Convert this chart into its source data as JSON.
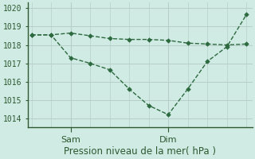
{
  "background_color": "#d0eae4",
  "plot_bg_color": "#d0eae4",
  "grid_color": "#b8cfc9",
  "line_color": "#2d6a3f",
  "line1_x": [
    0,
    1,
    2,
    3,
    4,
    5,
    6,
    7,
    8,
    9,
    10,
    11
  ],
  "line1_y": [
    1018.55,
    1018.55,
    1018.65,
    1018.5,
    1018.35,
    1018.3,
    1018.3,
    1018.25,
    1018.1,
    1018.05,
    1018.0,
    1018.05
  ],
  "line2_x": [
    0,
    1,
    2,
    3,
    4,
    5,
    6,
    7,
    8,
    9,
    10,
    11
  ],
  "line2_y": [
    1018.55,
    1018.55,
    1017.3,
    1017.0,
    1016.65,
    1015.6,
    1014.7,
    1014.2,
    1015.6,
    1017.1,
    1017.9,
    1019.65
  ],
  "sam_x": 2.0,
  "dim_x": 7.0,
  "ylim": [
    1013.5,
    1020.3
  ],
  "yticks": [
    1014,
    1015,
    1016,
    1017,
    1018,
    1019,
    1020
  ],
  "xlim": [
    -0.2,
    11.3
  ],
  "xlabel": "Pression niveau de la mer( hPa )",
  "xlabel_fontsize": 8.5,
  "ylabel_fontsize": 7,
  "xtick_fontsize": 8,
  "axis_color": "#2d5a30"
}
